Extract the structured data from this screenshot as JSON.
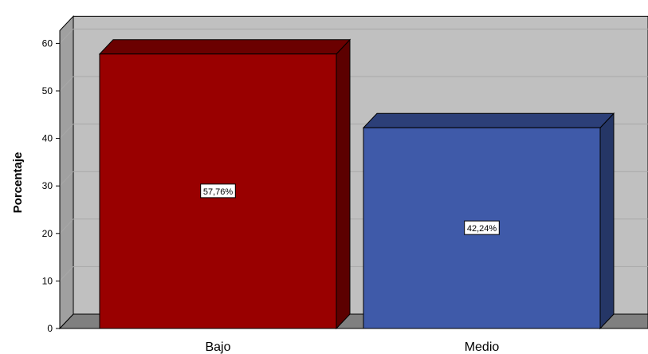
{
  "chart_data": {
    "type": "bar",
    "style": "3d",
    "categories": [
      "Bajo",
      "Medio"
    ],
    "values": [
      57.76,
      42.24
    ],
    "data_labels": [
      "57,76%",
      "42,24%"
    ],
    "ylabel": "Porcentaje",
    "xlabel": "",
    "ylim": [
      0,
      60
    ],
    "yticks": [
      "0",
      "10",
      "20",
      "30",
      "40",
      "50",
      "60"
    ],
    "grid": true,
    "legend": "none",
    "colors": {
      "bars": [
        "#990000",
        "#3f5aa9"
      ],
      "bar_tops": [
        "#6b0000",
        "#2c3f78"
      ],
      "bar_sides": [
        "#5c0000",
        "#253666"
      ],
      "wall": "#c0c0c0",
      "wall_side": "#a0a0a0",
      "floor": "#808080",
      "grid": "#a8a8a8"
    }
  }
}
